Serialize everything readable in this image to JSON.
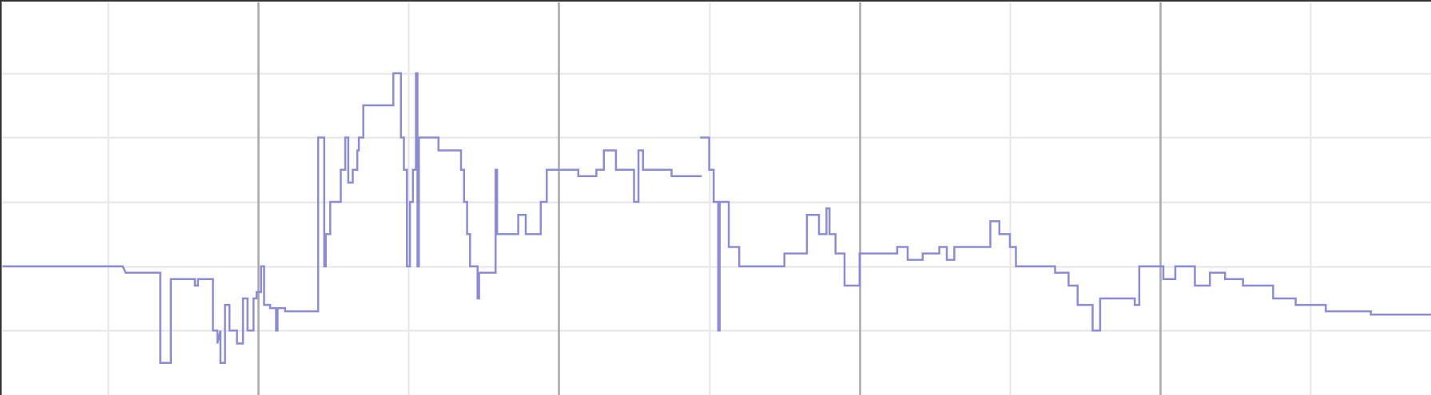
{
  "chart_data": {
    "type": "line",
    "title": "",
    "xlabel": "",
    "ylabel": "",
    "step": true,
    "grid": true,
    "legend": "none",
    "colors": {
      "line": "#8b8bd8",
      "grid_minor": "#e6e6e6",
      "grid_major": "#a8a8a8",
      "axis": "#333333",
      "background": "#ffffff"
    },
    "xlim": [
      0,
      95
    ],
    "ylim": [
      -2,
      4.1
    ],
    "x_gridlines": [
      7,
      17,
      27,
      37,
      47,
      57,
      67,
      77,
      87
    ],
    "x_major_gridlines": [
      17,
      37,
      57,
      77
    ],
    "y_gridlines": [
      -1,
      0,
      1,
      2,
      3
    ],
    "series": [
      {
        "values_xy": [
          [
            0,
            0
          ],
          [
            8,
            0
          ],
          [
            8.2,
            -0.1
          ],
          [
            10.5,
            -0.1
          ],
          [
            10.5,
            -1.5
          ],
          [
            11.2,
            -1.5
          ],
          [
            11.2,
            -0.2
          ],
          [
            12.8,
            -0.2
          ],
          [
            12.8,
            -0.3
          ],
          [
            13,
            -0.3
          ],
          [
            13,
            -0.2
          ],
          [
            14,
            -0.2
          ],
          [
            14,
            -1
          ],
          [
            14.3,
            -1
          ],
          [
            14.3,
            -1.2
          ],
          [
            14.5,
            -1
          ],
          [
            14.5,
            -1.5
          ],
          [
            14.8,
            -1.5
          ],
          [
            14.8,
            -0.6
          ],
          [
            15.1,
            -0.6
          ],
          [
            15.1,
            -1
          ],
          [
            15.6,
            -1
          ],
          [
            15.6,
            -1.2
          ],
          [
            16,
            -1.2
          ],
          [
            16,
            -0.5
          ],
          [
            16.3,
            -0.5
          ],
          [
            16.3,
            -1
          ],
          [
            16.7,
            -1
          ],
          [
            16.7,
            -0.5
          ],
          [
            16.9,
            -0.5
          ],
          [
            16.9,
            -0.4
          ],
          [
            17.2,
            -0.4
          ],
          [
            17.2,
            0
          ],
          [
            17.4,
            0
          ],
          [
            17.4,
            -0.6
          ],
          [
            17.8,
            -0.6
          ],
          [
            17.8,
            -0.65
          ],
          [
            18.2,
            -0.65
          ],
          [
            18.2,
            -1
          ],
          [
            18.3,
            -1
          ],
          [
            18.3,
            -0.65
          ],
          [
            18.8,
            -0.65
          ],
          [
            18.8,
            -0.7
          ],
          [
            21,
            -0.7
          ],
          [
            21,
            2
          ],
          [
            21.4,
            2
          ],
          [
            21.4,
            0
          ],
          [
            21.5,
            0
          ],
          [
            21.5,
            0.5
          ],
          [
            21.8,
            0.5
          ],
          [
            21.8,
            1
          ],
          [
            22.5,
            1
          ],
          [
            22.5,
            1.5
          ],
          [
            22.8,
            1.5
          ],
          [
            22.8,
            2
          ],
          [
            23,
            2
          ],
          [
            23,
            1.3
          ],
          [
            23.3,
            1.3
          ],
          [
            23.3,
            1.5
          ],
          [
            23.6,
            1.5
          ],
          [
            23.6,
            1.8
          ],
          [
            23.7,
            1.8
          ],
          [
            23.7,
            2
          ],
          [
            24,
            2
          ],
          [
            24,
            2.5
          ],
          [
            24.5,
            2.5
          ],
          [
            25,
            2.5
          ],
          [
            25.4,
            2.5
          ],
          [
            26,
            2.5
          ],
          [
            26,
            3
          ],
          [
            26.5,
            3
          ],
          [
            26.5,
            2
          ],
          [
            26.7,
            2
          ],
          [
            26.7,
            1.5
          ],
          [
            26.9,
            1.5
          ],
          [
            26.9,
            0
          ],
          [
            27.1,
            0
          ],
          [
            27.1,
            1
          ],
          [
            27.3,
            1
          ],
          [
            27.3,
            1.5
          ],
          [
            27.5,
            1.5
          ],
          [
            27.5,
            3
          ],
          [
            27.6,
            3
          ],
          [
            27.6,
            0
          ],
          [
            27.7,
            0
          ],
          [
            27.7,
            2
          ],
          [
            29,
            2
          ],
          [
            29,
            1.8
          ],
          [
            30.5,
            1.8
          ],
          [
            30.5,
            1.5
          ],
          [
            30.7,
            1.5
          ],
          [
            30.7,
            1
          ],
          [
            30.9,
            1
          ],
          [
            30.9,
            0.5
          ],
          [
            31.1,
            0.5
          ],
          [
            31.1,
            0
          ],
          [
            31.6,
            0
          ],
          [
            31.6,
            -0.5
          ],
          [
            31.7,
            -0.5
          ],
          [
            31.7,
            -0.1
          ],
          [
            32.8,
            -0.1
          ],
          [
            32.8,
            1.5
          ],
          [
            32.9,
            1.5
          ],
          [
            32.9,
            0.5
          ],
          [
            34.3,
            0.5
          ],
          [
            34.3,
            0.8
          ],
          [
            34.8,
            0.8
          ],
          [
            34.8,
            0.5
          ],
          [
            35.8,
            0.5
          ],
          [
            35.8,
            1
          ],
          [
            36.2,
            1
          ],
          [
            36.2,
            1.5
          ],
          [
            36.6,
            1.5
          ],
          [
            36.6,
            1.5
          ],
          [
            38,
            1.5
          ],
          [
            38.3,
            1.5
          ],
          [
            38.3,
            1.4
          ],
          [
            38.6,
            1.4
          ],
          [
            39.5,
            1.4
          ],
          [
            39.5,
            1.5
          ],
          [
            40,
            1.5
          ],
          [
            40,
            1.8
          ],
          [
            40.8,
            1.8
          ],
          [
            40.8,
            1.5
          ],
          [
            41.6,
            1.5
          ],
          [
            42,
            1.5
          ],
          [
            42,
            1
          ],
          [
            42.3,
            1
          ],
          [
            42.3,
            1.8
          ],
          [
            42.6,
            1.8
          ],
          [
            42.6,
            1.5
          ],
          [
            43.2,
            1.5
          ],
          [
            43.6,
            1.5
          ],
          [
            43.6,
            1.5
          ],
          [
            44.5,
            1.5
          ],
          [
            44.5,
            1.4
          ],
          [
            45,
            1.4
          ],
          [
            46.5,
            1.4
          ]
        ]
      },
      {
        "values_xy": [
          [
            46.4,
            2
          ],
          [
            47,
            2
          ],
          [
            47,
            1.5
          ],
          [
            47.3,
            1.5
          ],
          [
            47.3,
            1
          ],
          [
            47.6,
            1
          ],
          [
            47.6,
            -1
          ],
          [
            47.7,
            -1
          ],
          [
            47.7,
            1
          ],
          [
            48.3,
            1
          ],
          [
            48.3,
            0.3
          ],
          [
            49,
            0.3
          ],
          [
            49,
            0
          ],
          [
            52,
            0
          ],
          [
            52,
            0.2
          ],
          [
            53.5,
            0.2
          ],
          [
            53.5,
            0.8
          ],
          [
            54.3,
            0.8
          ],
          [
            54.3,
            0.5
          ],
          [
            54.8,
            0.5
          ],
          [
            54.8,
            0.9
          ],
          [
            55,
            0.9
          ],
          [
            55,
            0.5
          ],
          [
            55.4,
            0.5
          ],
          [
            55.4,
            0.2
          ],
          [
            56,
            0.2
          ],
          [
            56,
            -0.3
          ],
          [
            57,
            -0.3
          ],
          [
            57,
            0.2
          ],
          [
            57.5,
            0.2
          ],
          [
            57.5,
            0.2
          ],
          [
            59.5,
            0.2
          ],
          [
            59.5,
            0.3
          ],
          [
            60.2,
            0.3
          ],
          [
            60.2,
            0.1
          ],
          [
            61.2,
            0.1
          ],
          [
            61.2,
            0.2
          ],
          [
            62.3,
            0.2
          ],
          [
            62.3,
            0.3
          ],
          [
            62.8,
            0.3
          ],
          [
            62.8,
            0.1
          ],
          [
            63.3,
            0.1
          ],
          [
            63.3,
            0.3
          ],
          [
            65.7,
            0.3
          ],
          [
            65.7,
            0.7
          ],
          [
            66.3,
            0.7
          ],
          [
            66.3,
            0.5
          ],
          [
            67,
            0.5
          ],
          [
            67,
            0.3
          ],
          [
            67.4,
            0.3
          ],
          [
            67.4,
            0
          ],
          [
            70,
            0
          ],
          [
            70,
            -0.1
          ],
          [
            70.9,
            -0.1
          ],
          [
            70.9,
            -0.3
          ],
          [
            71.5,
            -0.3
          ],
          [
            71.5,
            -0.6
          ],
          [
            72.5,
            -0.6
          ],
          [
            72.5,
            -1
          ],
          [
            73,
            -1
          ],
          [
            73,
            -0.5
          ],
          [
            75,
            -0.5
          ],
          [
            75.3,
            -0.5
          ],
          [
            75.3,
            -0.6
          ],
          [
            75.6,
            -0.6
          ],
          [
            75.6,
            0
          ],
          [
            77.2,
            0
          ],
          [
            77.2,
            -0.2
          ],
          [
            78,
            -0.2
          ],
          [
            78,
            0
          ],
          [
            79.3,
            0
          ],
          [
            79.3,
            -0.3
          ],
          [
            80.3,
            -0.3
          ],
          [
            80.3,
            -0.1
          ],
          [
            81.3,
            -0.1
          ],
          [
            81.3,
            -0.2
          ],
          [
            82.5,
            -0.2
          ],
          [
            82.5,
            -0.3
          ],
          [
            84.5,
            -0.3
          ],
          [
            84.5,
            -0.5
          ],
          [
            86,
            -0.5
          ],
          [
            86,
            -0.6
          ],
          [
            88,
            -0.6
          ],
          [
            88,
            -0.7
          ],
          [
            91,
            -0.7
          ],
          [
            91,
            -0.75
          ],
          [
            95,
            -0.75
          ]
        ]
      }
    ]
  }
}
